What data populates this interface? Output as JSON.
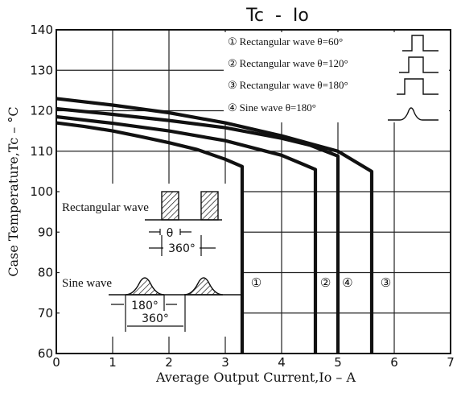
{
  "chart_data": {
    "type": "line",
    "title": "Tc  -  Io",
    "xlabel": "Average Output Current,Io – A",
    "ylabel": "Case Temperature,Tc – °C",
    "xlim": [
      0,
      7
    ],
    "ylim": [
      60,
      140
    ],
    "x_ticks": [
      "0",
      "1",
      "2",
      "3",
      "4",
      "5",
      "6",
      "7"
    ],
    "y_ticks": [
      "60",
      "70",
      "80",
      "90",
      "100",
      "110",
      "120",
      "130",
      "140"
    ],
    "grid": true,
    "legend_position": "top-right",
    "legend": [
      {
        "marker": "①",
        "label": "Rectangular wave θ=60°"
      },
      {
        "marker": "②",
        "label": "Rectangular wave θ=120°"
      },
      {
        "marker": "③",
        "label": "Rectangular wave θ=180°"
      },
      {
        "marker": "④",
        "label": "Sine wave θ=180°"
      }
    ],
    "series": [
      {
        "marker": "①",
        "label_x": 3.55,
        "label_y": 76.5,
        "x": [
          0,
          0.5,
          1,
          1.5,
          2,
          2.5,
          3,
          3.3,
          3.3
        ],
        "y": [
          117,
          116.1,
          115,
          113.6,
          112.1,
          110.4,
          108,
          106.2,
          60
        ]
      },
      {
        "marker": "②",
        "label_x": 4.78,
        "label_y": 76.5,
        "x": [
          0,
          1,
          2,
          3,
          4,
          4.6,
          4.6
        ],
        "y": [
          118.5,
          116.9,
          115,
          112.6,
          109,
          105.5,
          60
        ]
      },
      {
        "marker": "④",
        "label_x": 5.17,
        "label_y": 76.5,
        "x": [
          0,
          1,
          2,
          3,
          4,
          4.5,
          5,
          5
        ],
        "y": [
          120.5,
          119.1,
          117.6,
          115.8,
          113.2,
          111.5,
          108.8,
          60
        ]
      },
      {
        "marker": "③",
        "label_x": 5.85,
        "label_y": 76.5,
        "x": [
          0,
          1,
          2,
          3,
          4,
          5,
          5.6,
          5.6
        ],
        "y": [
          123,
          121.4,
          119.5,
          117,
          113.8,
          110,
          105,
          60
        ]
      }
    ],
    "inset": {
      "rect_label": "Rectangular wave",
      "theta": "θ",
      "period_rect": "360°",
      "sine_label": "Sine wave",
      "half": "180°",
      "period_sine": "360°"
    }
  }
}
